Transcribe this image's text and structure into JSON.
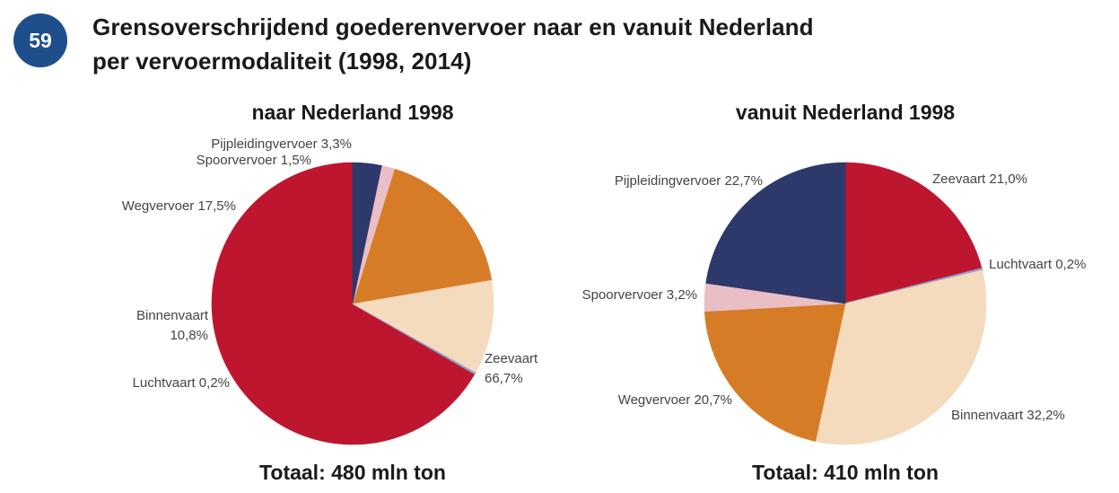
{
  "page": {
    "badge": "59",
    "title_line1": "Grensoverschrijdend goederenvervoer naar en vanuit Nederland",
    "title_line2": "per vervoermodaliteit (1998, 2014)"
  },
  "chart_data": [
    {
      "type": "pie",
      "title": "naar Nederland 1998",
      "total_label": "Totaal: 480 mln ton",
      "unit": "%",
      "slices": [
        {
          "label": "Zeevaart",
          "value": 66.7,
          "value_label": "66,7%",
          "color": "#be162f"
        },
        {
          "label": "Luchtvaart",
          "value": 0.2,
          "value_label": "0,2%",
          "color": "#8ea2cc"
        },
        {
          "label": "Binnenvaart",
          "value": 10.8,
          "value_label": "10,8%",
          "color": "#f5dbbe"
        },
        {
          "label": "Wegvervoer",
          "value": 17.5,
          "value_label": "17,5%",
          "color": "#d67c27"
        },
        {
          "label": "Spoorvervoer",
          "value": 1.5,
          "value_label": "1,5%",
          "color": "#e9bec4"
        },
        {
          "label": "Pijpleidingvervoer",
          "value": 3.3,
          "value_label": "3,3%",
          "color": "#2d386b"
        }
      ]
    },
    {
      "type": "pie",
      "title": "vanuit Nederland 1998",
      "total_label": "Totaal: 410 mln ton",
      "unit": "%",
      "slices": [
        {
          "label": "Zeevaart",
          "value": 21.0,
          "value_label": "21,0%",
          "color": "#be162f"
        },
        {
          "label": "Luchtvaart",
          "value": 0.2,
          "value_label": "0,2%",
          "color": "#8ea2cc"
        },
        {
          "label": "Binnenvaart",
          "value": 32.2,
          "value_label": "32,2%",
          "color": "#f5dbbe"
        },
        {
          "label": "Wegvervoer",
          "value": 20.7,
          "value_label": "20,7%",
          "color": "#d67c27"
        },
        {
          "label": "Spoorvervoer",
          "value": 3.2,
          "value_label": "3,2%",
          "color": "#e9bec4"
        },
        {
          "label": "Pijpleidingvervoer",
          "value": 22.7,
          "value_label": "22,7%",
          "color": "#2d386b"
        }
      ]
    }
  ]
}
